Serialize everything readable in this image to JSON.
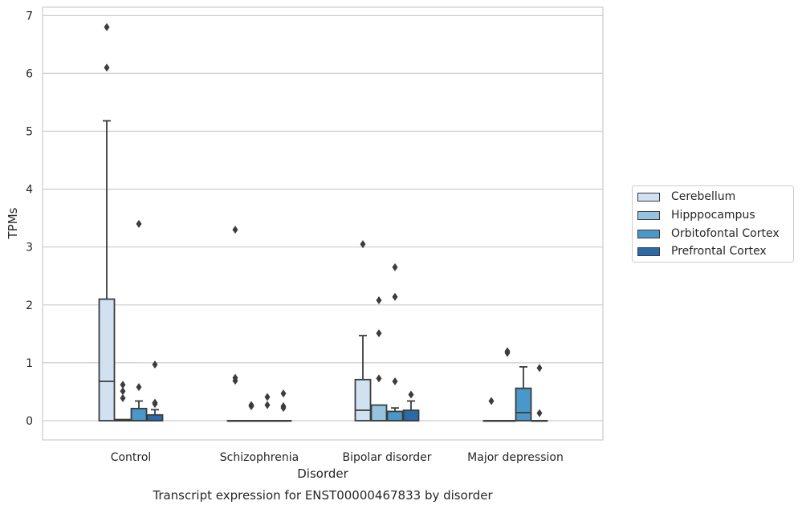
{
  "chart_data": {
    "type": "box",
    "title": "Transcript expression for ENST00000467833 by disorder",
    "xlabel": "Disorder",
    "ylabel": "TPMs",
    "ylim": [
      -0.33,
      7.15
    ],
    "yticks": [
      0,
      1,
      2,
      3,
      4,
      5,
      6,
      7
    ],
    "grid": true,
    "legend_position": "right",
    "categories": [
      "Control",
      "Schizophrenia",
      "Bipolar disorder",
      "Major depression"
    ],
    "series": [
      {
        "name": "Cerebellum",
        "color": "#d0e1f2",
        "boxes": [
          {
            "q1": 0,
            "median": 0.68,
            "q3": 2.1,
            "whisker_low": 0,
            "whisker_high": 5.18,
            "outliers": [
              6.1,
              6.8
            ]
          },
          {
            "q1": 0,
            "median": 0,
            "q3": 0,
            "whisker_low": 0,
            "whisker_high": 0,
            "outliers": [
              0.69,
              0.74,
              3.3
            ]
          },
          {
            "q1": 0,
            "median": 0.18,
            "q3": 0.71,
            "whisker_low": 0,
            "whisker_high": 1.47,
            "outliers": [
              3.05
            ]
          },
          {
            "q1": 0,
            "median": 0,
            "q3": 0,
            "whisker_low": 0,
            "whisker_high": 0,
            "outliers": [
              0.34
            ]
          }
        ]
      },
      {
        "name": "Hipppocampus",
        "color": "#94c4df",
        "boxes": [
          {
            "q1": 0,
            "median": 0,
            "q3": 0.02,
            "whisker_low": 0,
            "whisker_high": 0.02,
            "outliers": [
              0.39,
              0.51,
              0.62
            ]
          },
          {
            "q1": 0,
            "median": 0,
            "q3": 0,
            "whisker_low": 0,
            "whisker_high": 0,
            "outliers": [
              0.25,
              0.27
            ]
          },
          {
            "q1": 0,
            "median": 0,
            "q3": 0.27,
            "whisker_low": 0,
            "whisker_high": 0.27,
            "outliers": [
              0.73,
              1.51,
              2.08
            ]
          },
          {
            "q1": 0,
            "median": 0,
            "q3": 0,
            "whisker_low": 0,
            "whisker_high": 0,
            "outliers": [
              1.17,
              1.2
            ]
          }
        ]
      },
      {
        "name": "Orbitofontal Cortex",
        "color": "#4a98c9",
        "boxes": [
          {
            "q1": 0,
            "median": 0,
            "q3": 0.21,
            "whisker_low": 0,
            "whisker_high": 0.34,
            "outliers": [
              0.58,
              3.4
            ]
          },
          {
            "q1": 0,
            "median": 0,
            "q3": 0,
            "whisker_low": 0,
            "whisker_high": 0,
            "outliers": [
              0.27,
              0.41
            ]
          },
          {
            "q1": 0,
            "median": 0,
            "q3": 0.16,
            "whisker_low": 0,
            "whisker_high": 0.22,
            "outliers": [
              0.68,
              2.14,
              2.65
            ]
          },
          {
            "q1": 0,
            "median": 0.14,
            "q3": 0.56,
            "whisker_low": 0,
            "whisker_high": 0.93,
            "outliers": []
          }
        ]
      },
      {
        "name": "Prefrontal Cortex",
        "color": "#2a6aa8",
        "boxes": [
          {
            "q1": 0,
            "median": 0,
            "q3": 0.1,
            "whisker_low": 0,
            "whisker_high": 0.19,
            "outliers": [
              0.29,
              0.31,
              0.97
            ]
          },
          {
            "q1": 0,
            "median": 0,
            "q3": 0,
            "whisker_low": 0,
            "whisker_high": 0,
            "outliers": [
              0.22,
              0.25,
              0.47
            ]
          },
          {
            "q1": 0,
            "median": 0,
            "q3": 0.18,
            "whisker_low": 0,
            "whisker_high": 0.34,
            "outliers": [
              0.45
            ]
          },
          {
            "q1": 0,
            "median": 0,
            "q3": 0,
            "whisker_low": 0,
            "whisker_high": 0,
            "outliers": [
              0.13,
              0.91
            ]
          }
        ]
      }
    ]
  }
}
